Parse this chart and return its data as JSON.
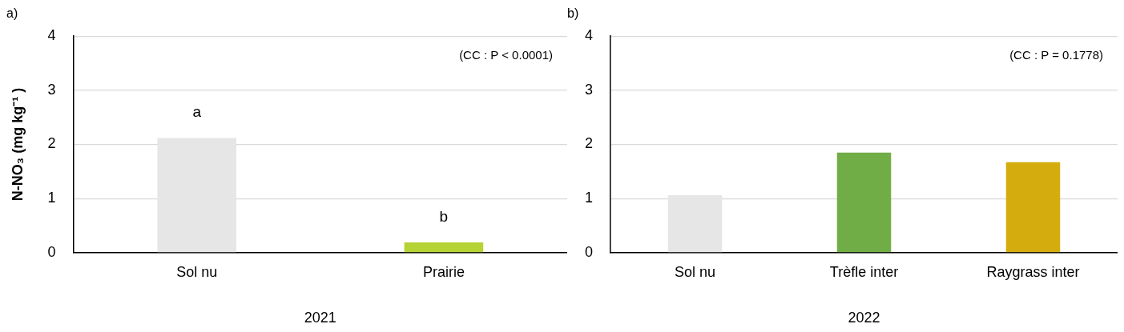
{
  "chart_data": [
    {
      "type": "bar",
      "title": "a)",
      "xlabel": "2021",
      "ylabel": "N-NO₃ (mg kg⁻¹ )",
      "categories": [
        "Sol nu",
        "Prairie"
      ],
      "values": [
        2.12,
        0.19
      ],
      "colors": [
        "#e6e6e6",
        "#b5d334"
      ],
      "ylim": [
        0,
        4
      ],
      "yticks": [
        0,
        1,
        2,
        3,
        4
      ],
      "grid": "y",
      "annotations": [
        "(CC : P < 0.0001)",
        "a",
        "b"
      ]
    },
    {
      "type": "bar",
      "title": "b)",
      "xlabel": "2022",
      "categories": [
        "Sol nu",
        "Trèfle inter",
        "Raygrass inter"
      ],
      "values": [
        1.06,
        1.85,
        1.67
      ],
      "colors": [
        "#e6e6e6",
        "#70ad47",
        "#d4ac0d"
      ],
      "ylim": [
        0,
        4
      ],
      "yticks": [
        0,
        1,
        2,
        3,
        4
      ],
      "grid": "y",
      "annotations": [
        "(CC : P = 0.1778)"
      ]
    }
  ]
}
